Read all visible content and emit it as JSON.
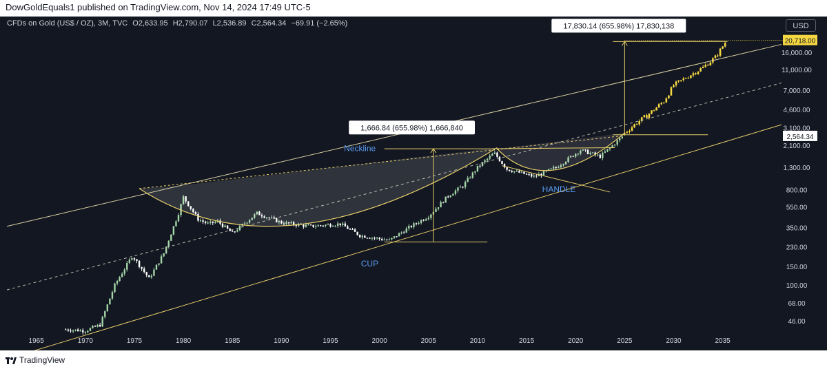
{
  "header": {
    "publisher_line": "DowGoldEquals1 published on TradingView.com, Nov 14, 2024 17:49 UTC-5"
  },
  "legend": {
    "symbol": "CFDs on Gold (US$ / OZ), 3M, TVC",
    "open": "O2,633.95",
    "high": "H2,790.07",
    "low": "L2,536.89",
    "close": "C2,564.34",
    "change": "−69.91 (−2.65%)"
  },
  "currency_button": "USD",
  "footer": {
    "brand": "TradingView"
  },
  "colors": {
    "background": "#131722",
    "up_candle": "#a5d6a7",
    "down_candle": "#ffffff",
    "projection": "#f5d742",
    "annotation": "#e8cf6a",
    "label_blue": "#5b9cf2",
    "price_tag": "#f5d742"
  },
  "chart_data": {
    "type": "candlestick",
    "title": "",
    "xlabel": "",
    "ylabel": "",
    "y_scale": "log",
    "xlim": [
      1962,
      2041
    ],
    "ylim": [
      34,
      30000
    ],
    "x_ticks": [
      1965,
      1970,
      1975,
      1980,
      1985,
      1990,
      1995,
      2000,
      2005,
      2010,
      2015,
      2020,
      2025,
      2030,
      2035
    ],
    "y_ticks": [
      46,
      68,
      100,
      150,
      230,
      350,
      550,
      800,
      1300,
      2100,
      3100,
      4600,
      7000,
      11000,
      16000
    ],
    "y_tick_labels": [
      "46.00",
      "68.00",
      "100.00",
      "150.00",
      "230.00",
      "350.00",
      "550.00",
      "800.00",
      "1,300.00",
      "2,100.00",
      "3,100.00",
      "4,600.00",
      "7,000.00",
      "11,000.00",
      "16,000.00"
    ],
    "price_anchors": [
      [
        1968,
        38
      ],
      [
        1970,
        37
      ],
      [
        1971.5,
        42
      ],
      [
        1973,
        100
      ],
      [
        1974.8,
        190
      ],
      [
        1976.5,
        115
      ],
      [
        1978,
        200
      ],
      [
        1979.5,
        480
      ],
      [
        1980,
        680
      ],
      [
        1981.5,
        420
      ],
      [
        1982.5,
        380
      ],
      [
        1983.5,
        400
      ],
      [
        1985,
        310
      ],
      [
        1987.5,
        480
      ],
      [
        1990,
        390
      ],
      [
        1993,
        360
      ],
      [
        1996,
        380
      ],
      [
        1998,
        295
      ],
      [
        2001,
        265
      ],
      [
        2003,
        350
      ],
      [
        2005,
        450
      ],
      [
        2007,
        700
      ],
      [
        2008.5,
        870
      ],
      [
        2010,
        1300
      ],
      [
        2011.7,
        1780
      ],
      [
        2013,
        1250
      ],
      [
        2015.8,
        1060
      ],
      [
        2018,
        1300
      ],
      [
        2020.5,
        1900
      ],
      [
        2022.5,
        1650
      ],
      [
        2024.8,
        2564
      ]
    ],
    "projection_anchors": [
      [
        2024.9,
        2700
      ],
      [
        2026,
        3300
      ],
      [
        2027.5,
        4200
      ],
      [
        2029,
        5500
      ],
      [
        2030,
        7800
      ],
      [
        2031.5,
        9500
      ],
      [
        2033,
        11500
      ],
      [
        2034.3,
        14500
      ],
      [
        2035.4,
        20718
      ]
    ],
    "last_price": {
      "value": 2564.34,
      "label": "2,564.34"
    },
    "target_price": {
      "value": 20718,
      "label": "20,718.00"
    },
    "annotations": {
      "neckline": "Neckline",
      "cup": "CUP",
      "handle": "HANDLE",
      "cup_measure": "1,666.84 (655.98%) 1,666,840",
      "target_measure": "17,830.14 (655.98%) 17,830,138"
    }
  }
}
